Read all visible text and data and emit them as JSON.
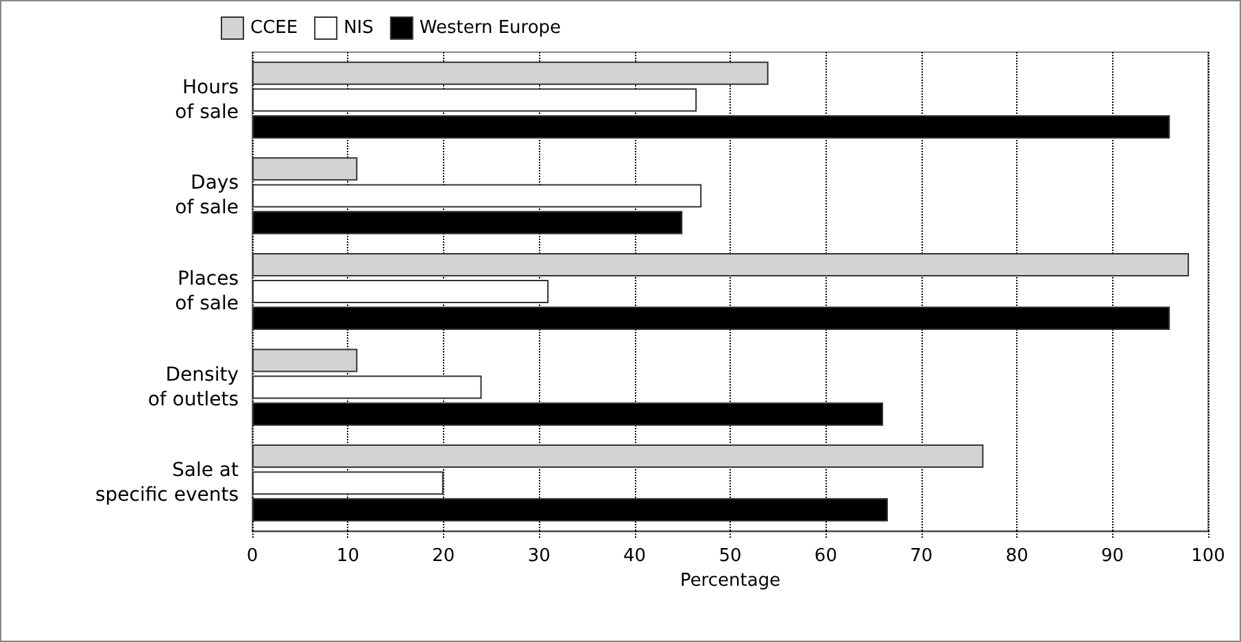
{
  "chart_data": {
    "type": "bar",
    "orientation": "horizontal",
    "xlabel": "Percentage",
    "categories": [
      "Hours\nof sale",
      "Days\nof sale",
      "Places\nof sale",
      "Density\nof outlets",
      "Sale at\nspecific events"
    ],
    "series": [
      {
        "name": "CCEE",
        "color": "#d3d3d3",
        "values": [
          54,
          11,
          98,
          11,
          76.5
        ]
      },
      {
        "name": "NIS",
        "color": "#ffffff",
        "values": [
          46.5,
          47,
          31,
          24,
          20
        ]
      },
      {
        "name": "Western Europe",
        "color": "#000000",
        "values": [
          96,
          45,
          96,
          66,
          66.5
        ]
      }
    ],
    "xlim": [
      0,
      100
    ],
    "xticks": [
      0,
      10,
      20,
      30,
      40,
      50,
      60,
      70,
      80,
      90,
      100
    ],
    "grid": "x",
    "legend": "top left"
  }
}
